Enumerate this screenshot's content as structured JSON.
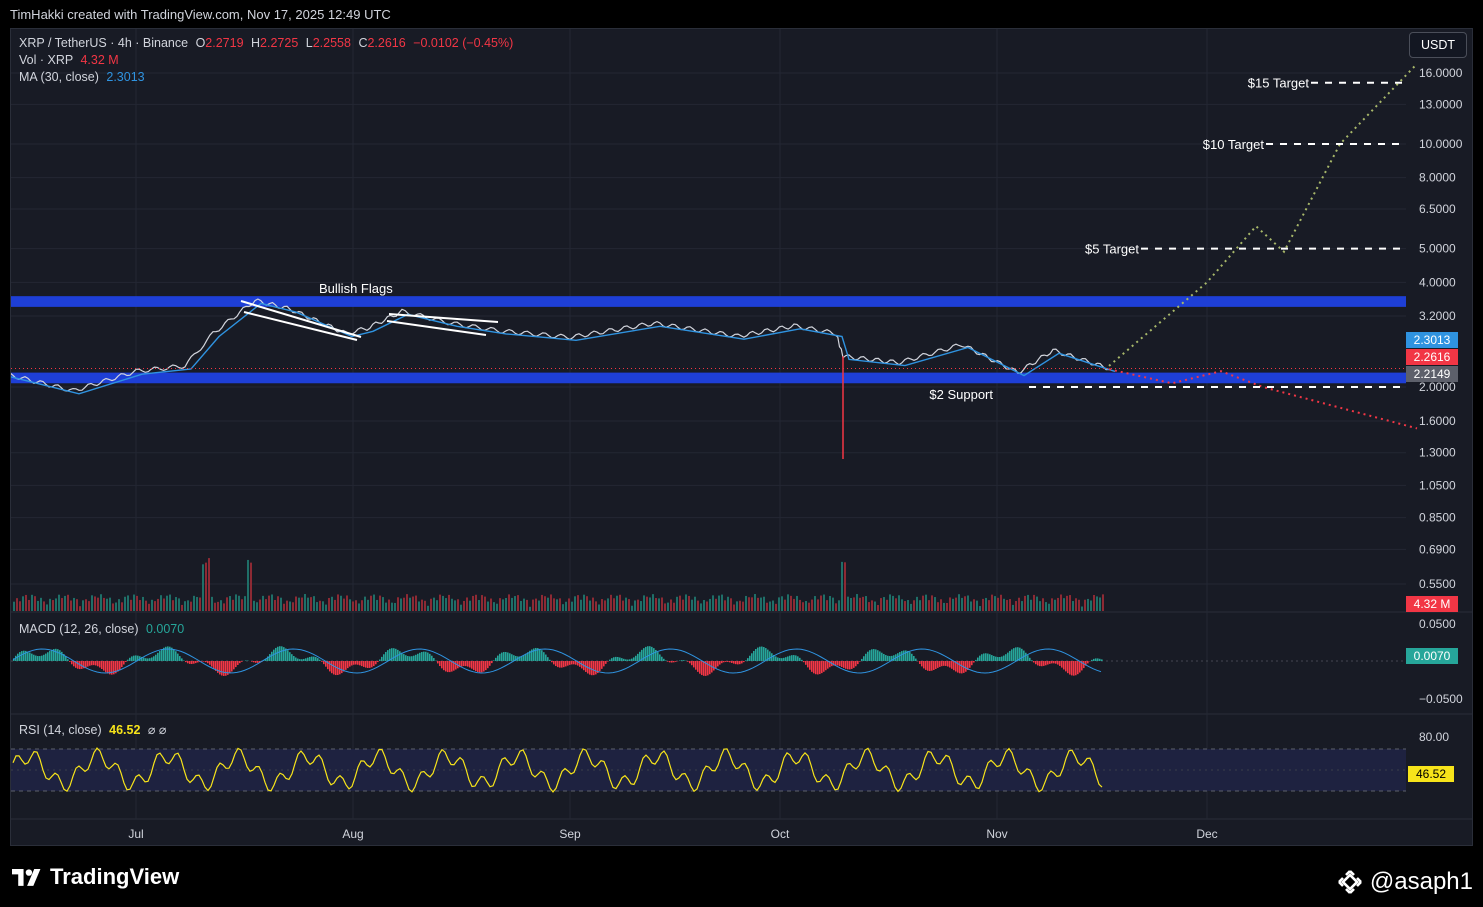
{
  "header": {
    "credit": "TimHakki created with TradingView.com, Nov 17, 2025 12:49 UTC"
  },
  "legend": {
    "symbol": "XRP / TetherUS · 4h · Binance",
    "o_label": "O",
    "o_value": "2.2719",
    "h_label": "H",
    "h_value": "2.2725",
    "l_label": "L",
    "l_value": "2.2558",
    "c_label": "C",
    "c_value": "2.2616",
    "change": "−0.0102 (−0.45%)",
    "vol_label": "Vol · XRP",
    "vol_value": "4.32 M",
    "ma_label": "MA (30, close)",
    "ma_value": "2.3013",
    "macd_label": "MACD (12, 26, close)",
    "macd_value": "0.0070",
    "rsi_label": "RSI (14, close)",
    "rsi_value": "46.52",
    "rsi_extra": "⌀ ⌀"
  },
  "currency_button": "USDT",
  "badges": {
    "ma": {
      "text": "2.3013",
      "color": "#2f93e0"
    },
    "close": {
      "text": "2.2616",
      "color": "#f23645"
    },
    "countdown": {
      "text": "2.2149",
      "color": "#5d606b"
    },
    "volume": {
      "text": "4.32 M",
      "color": "#f23645"
    },
    "macd": {
      "text": "0.0070",
      "color": "#26a69a"
    },
    "rsi": {
      "text": "46.52",
      "color": "#f7e41a"
    }
  },
  "colors": {
    "background": "#181b25",
    "zone": "#1e3fd6",
    "price_line": "#d1d4dc",
    "ma_line": "#2f93e0",
    "bull_projection": "#a8b86a",
    "bear_projection": "#f23645",
    "rsi_line": "#f7e41a",
    "macd_pos": "#26a69a",
    "macd_neg": "#f23645"
  },
  "chart_data": {
    "type": "line",
    "title": "XRP / TetherUS · 4h · Binance",
    "y_scale": "log",
    "y_ticks": [
      "16.0000",
      "13.0000",
      "10.0000",
      "8.0000",
      "6.5000",
      "5.0000",
      "4.0000",
      "3.2000",
      "2.0000",
      "1.6000",
      "1.3000",
      "1.0500",
      "0.8500",
      "0.6900",
      "0.5500"
    ],
    "x_ticks": [
      "Jul",
      "Aug",
      "Sep",
      "Oct",
      "Nov",
      "Dec"
    ],
    "price_path": [
      {
        "date": "2025-06-10",
        "close": 2.24
      },
      {
        "date": "2025-06-22",
        "close": 1.95
      },
      {
        "date": "2025-07-01",
        "close": 2.22
      },
      {
        "date": "2025-07-08",
        "close": 2.3
      },
      {
        "date": "2025-07-12",
        "close": 2.85
      },
      {
        "date": "2025-07-18",
        "close": 3.55
      },
      {
        "date": "2025-07-23",
        "close": 3.35
      },
      {
        "date": "2025-07-31",
        "close": 2.85
      },
      {
        "date": "2025-08-03",
        "close": 2.95
      },
      {
        "date": "2025-08-08",
        "close": 3.3
      },
      {
        "date": "2025-08-15",
        "close": 3.05
      },
      {
        "date": "2025-08-22",
        "close": 2.9
      },
      {
        "date": "2025-09-01",
        "close": 2.78
      },
      {
        "date": "2025-09-13",
        "close": 3.05
      },
      {
        "date": "2025-09-25",
        "close": 2.8
      },
      {
        "date": "2025-10-03",
        "close": 3.0
      },
      {
        "date": "2025-10-09",
        "close": 2.85
      },
      {
        "date": "2025-10-10",
        "close": 2.45
      },
      {
        "date": "2025-10-18",
        "close": 2.35
      },
      {
        "date": "2025-10-27",
        "close": 2.65
      },
      {
        "date": "2025-11-04",
        "close": 2.2
      },
      {
        "date": "2025-11-09",
        "close": 2.55
      },
      {
        "date": "2025-11-17",
        "close": 2.2616
      }
    ],
    "flash_crash_low": {
      "date": "2025-10-10",
      "low": 1.25
    },
    "zones": [
      {
        "name": "resistance",
        "low": 3.4,
        "high": 3.65
      },
      {
        "name": "support",
        "low": 2.05,
        "high": 2.2
      }
    ],
    "annotations": [
      {
        "text": "Bullish Flags"
      },
      {
        "text": "$2 Support",
        "price": 2.0
      },
      {
        "text": "$5 Target",
        "price": 5.0
      },
      {
        "text": "$10 Target",
        "price": 10.0
      },
      {
        "text": "$15 Target",
        "price": 15.0
      }
    ],
    "bull_projection": [
      {
        "date": "2025-11-17",
        "price": 2.3
      },
      {
        "date": "2025-12-01",
        "price": 4.0
      },
      {
        "date": "2025-12-08",
        "price": 5.8
      },
      {
        "date": "2025-12-12",
        "price": 4.9
      },
      {
        "date": "2025-12-20",
        "price": 10.0
      },
      {
        "date": "2025-12-31",
        "price": 17.0
      }
    ],
    "bear_projection": [
      {
        "date": "2025-11-17",
        "price": 2.25
      },
      {
        "date": "2025-11-26",
        "price": 2.05
      },
      {
        "date": "2025-12-03",
        "price": 2.22
      },
      {
        "date": "2025-12-09",
        "price": 2.0
      },
      {
        "date": "2025-12-31",
        "price": 1.52
      }
    ],
    "ma": {
      "name": "MA (30, close)",
      "last": 2.3013
    },
    "volume_last": "4.32 M",
    "macd": {
      "y_ticks": [
        "0.0500",
        "−0.0500"
      ],
      "last": 0.007
    },
    "rsi": {
      "y_ticks": [
        "80.00"
      ],
      "last": 46.52,
      "upper": 70,
      "lower": 30
    }
  },
  "footer": {
    "brand": "TradingView",
    "user": "@asaph1"
  }
}
